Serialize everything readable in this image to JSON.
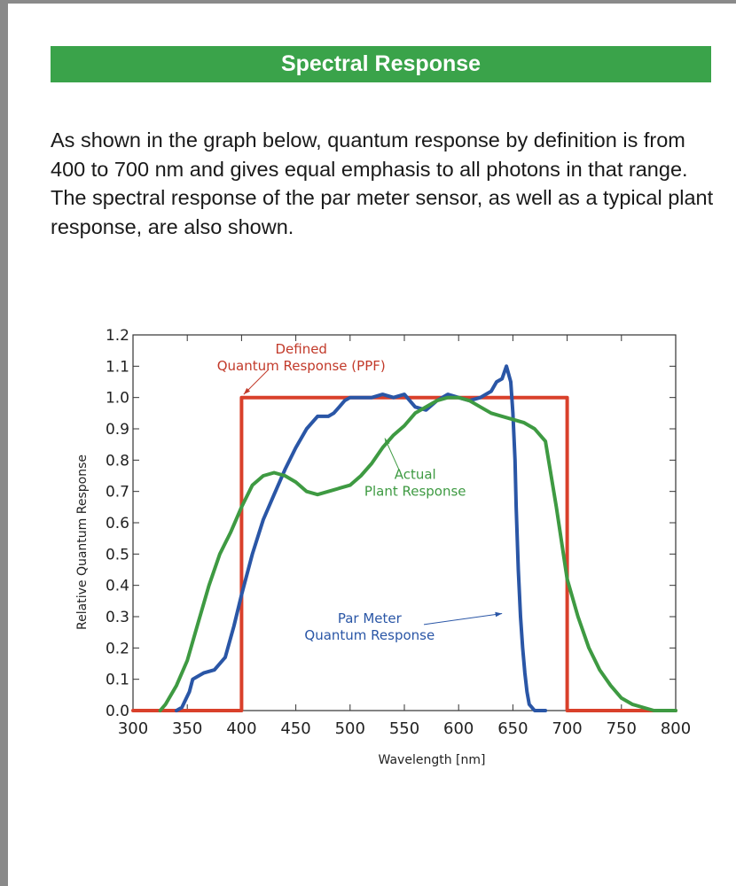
{
  "page": {
    "heading": "Spectral Response",
    "intro": "As shown in the graph below, quantum response by definition is from 400 to 700 nm and gives equal emphasis to all photons in that range. The spectral response of the par meter sensor, as well as a typical plant response, are also shown.",
    "colors": {
      "banner": "#3aa34a",
      "frame": "#8a8a8a"
    }
  },
  "chart_data": {
    "type": "line",
    "title": "",
    "xlabel": "Wavelength [nm]",
    "ylabel": "Relative Quantum Response",
    "xlim": [
      300,
      800
    ],
    "ylim": [
      0,
      1.2
    ],
    "xticks": [
      300,
      350,
      400,
      450,
      500,
      550,
      600,
      650,
      700,
      750,
      800
    ],
    "yticks": [
      "0.0",
      "0.1",
      "0.2",
      "0.3",
      "0.4",
      "0.5",
      "0.6",
      "0.7",
      "0.8",
      "0.9",
      "1.0",
      "1.1",
      "1.2"
    ],
    "grid": false,
    "series": [
      {
        "name": "Defined Quantum Response (PPF)",
        "color": "#d9402b",
        "x": [
          300,
          400,
          400,
          700,
          700,
          800
        ],
        "y": [
          0,
          0,
          1.0,
          1.0,
          0,
          0
        ]
      },
      {
        "name": "Par Meter Quantum Response",
        "color": "#2a56a6",
        "x": [
          340,
          345,
          352,
          355,
          365,
          375,
          385,
          393,
          400,
          410,
          420,
          430,
          440,
          450,
          460,
          470,
          480,
          485,
          490,
          495,
          500,
          510,
          520,
          530,
          540,
          550,
          560,
          570,
          580,
          590,
          600,
          610,
          620,
          630,
          635,
          640,
          644,
          648,
          650,
          652,
          653,
          655,
          657,
          659,
          661,
          663,
          665,
          670,
          680
        ],
        "y": [
          0.0,
          0.01,
          0.06,
          0.1,
          0.12,
          0.13,
          0.17,
          0.27,
          0.37,
          0.5,
          0.61,
          0.69,
          0.77,
          0.84,
          0.9,
          0.94,
          0.94,
          0.95,
          0.97,
          0.99,
          1.0,
          1.0,
          1.0,
          1.01,
          1.0,
          1.01,
          0.97,
          0.96,
          0.99,
          1.01,
          1.0,
          0.99,
          1.0,
          1.02,
          1.05,
          1.06,
          1.1,
          1.05,
          0.95,
          0.8,
          0.65,
          0.45,
          0.3,
          0.2,
          0.12,
          0.06,
          0.02,
          0.0,
          0.0
        ]
      },
      {
        "name": "Actual Plant Response",
        "color": "#3e9a42",
        "x": [
          325,
          330,
          340,
          350,
          360,
          370,
          380,
          390,
          400,
          410,
          420,
          430,
          440,
          450,
          460,
          470,
          480,
          490,
          500,
          510,
          520,
          530,
          540,
          550,
          560,
          570,
          580,
          590,
          600,
          610,
          620,
          630,
          640,
          650,
          660,
          670,
          680,
          690,
          700,
          710,
          720,
          730,
          740,
          750,
          760,
          770,
          780,
          790,
          800
        ],
        "y": [
          0.0,
          0.02,
          0.08,
          0.16,
          0.28,
          0.4,
          0.5,
          0.57,
          0.65,
          0.72,
          0.75,
          0.76,
          0.75,
          0.73,
          0.7,
          0.69,
          0.7,
          0.71,
          0.72,
          0.75,
          0.79,
          0.84,
          0.88,
          0.91,
          0.95,
          0.97,
          0.99,
          1.0,
          1.0,
          0.99,
          0.97,
          0.95,
          0.94,
          0.93,
          0.92,
          0.9,
          0.86,
          0.65,
          0.42,
          0.3,
          0.2,
          0.13,
          0.08,
          0.04,
          0.02,
          0.01,
          0.0,
          0.0,
          0.0
        ]
      }
    ],
    "annotations": [
      {
        "id": "ppf",
        "lines": [
          "Defined",
          "Quantum Response (PPF)"
        ],
        "color": "#c23a2a",
        "x": 455,
        "y": 1.14,
        "pointer": [
          [
            425,
            1.09
          ],
          [
            402,
            1.01
          ]
        ]
      },
      {
        "id": "plant",
        "lines": [
          "Actual",
          "Plant Response"
        ],
        "color": "#3e9a42",
        "x": 560,
        "y": 0.74,
        "pointer": [
          [
            545,
            0.77
          ],
          [
            532,
            0.87
          ]
        ]
      },
      {
        "id": "par",
        "lines": [
          "Par Meter",
          "Quantum Response"
        ],
        "color": "#2a56a6",
        "x": 518,
        "y": 0.28,
        "pointer": [
          [
            568,
            0.275
          ],
          [
            640,
            0.31
          ]
        ]
      }
    ]
  }
}
